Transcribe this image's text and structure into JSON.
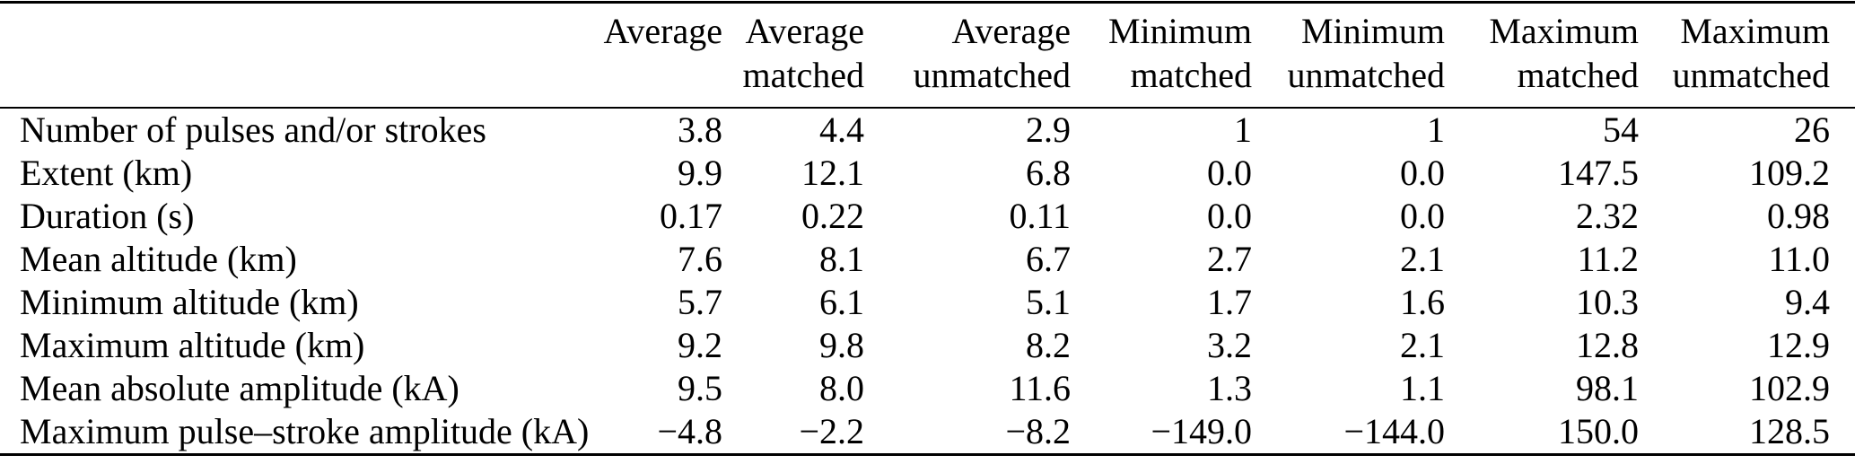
{
  "colors": {
    "text": "#000000",
    "rule": "#000000",
    "background": "#ffffff"
  },
  "table": {
    "header": [
      {
        "line1": "Average",
        "line2": ""
      },
      {
        "line1": "Average",
        "line2": "matched"
      },
      {
        "line1": "Average",
        "line2": "unmatched"
      },
      {
        "line1": "Minimum",
        "line2": "matched"
      },
      {
        "line1": "Minimum",
        "line2": "unmatched"
      },
      {
        "line1": "Maximum",
        "line2": "matched"
      },
      {
        "line1": "Maximum",
        "line2": "unmatched"
      }
    ],
    "rows": [
      {
        "label": "Number of pulses and/or strokes",
        "values": [
          "3.8",
          "4.4",
          "2.9",
          "1",
          "1",
          "54",
          "26"
        ]
      },
      {
        "label": "Extent (km)",
        "values": [
          "9.9",
          "12.1",
          "6.8",
          "0.0",
          "0.0",
          "147.5",
          "109.2"
        ]
      },
      {
        "label": "Duration (s)",
        "values": [
          "0.17",
          "0.22",
          "0.11",
          "0.0",
          "0.0",
          "2.32",
          "0.98"
        ]
      },
      {
        "label": "Mean altitude (km)",
        "values": [
          "7.6",
          "8.1",
          "6.7",
          "2.7",
          "2.1",
          "11.2",
          "11.0"
        ]
      },
      {
        "label": "Minimum altitude (km)",
        "values": [
          "5.7",
          "6.1",
          "5.1",
          "1.7",
          "1.6",
          "10.3",
          "9.4"
        ]
      },
      {
        "label": "Maximum altitude (km)",
        "values": [
          "9.2",
          "9.8",
          "8.2",
          "3.2",
          "2.1",
          "12.8",
          "12.9"
        ]
      },
      {
        "label": "Mean absolute amplitude (kA)",
        "values": [
          "9.5",
          "8.0",
          "11.6",
          "1.3",
          "1.1",
          "98.1",
          "102.9"
        ]
      },
      {
        "label": "Maximum pulse–stroke amplitude (kA)",
        "values": [
          "−4.8",
          "−2.2",
          "−8.2",
          "−149.0",
          "−144.0",
          "150.0",
          "128.5"
        ]
      }
    ]
  }
}
